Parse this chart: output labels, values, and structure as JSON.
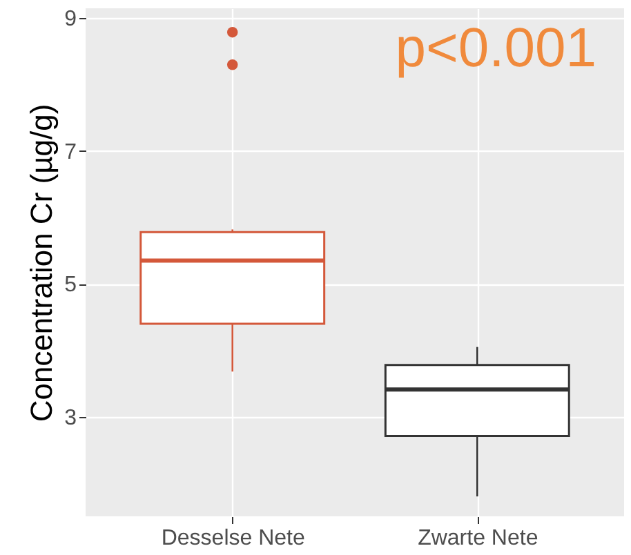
{
  "chart_data": {
    "type": "box",
    "ylabel": "Concentration Cr (µg/g)",
    "categories": [
      "Desselse Nete",
      "Zwarte Nete"
    ],
    "colors": [
      "#d4583a",
      "#333333"
    ],
    "boxes": [
      {
        "low": 3.68,
        "q1": 4.4,
        "median": 5.35,
        "q3": 5.78,
        "high": 5.82,
        "outliers": [
          8.79,
          8.3
        ]
      },
      {
        "low": 1.8,
        "q1": 2.71,
        "median": 3.41,
        "q3": 3.78,
        "high": 4.05
      }
    ],
    "ylim": [
      1.5,
      9.15
    ],
    "yticks": [
      3,
      5,
      7,
      9
    ],
    "grid": true,
    "legend": false,
    "annotations": [
      "p<0.001"
    ]
  }
}
